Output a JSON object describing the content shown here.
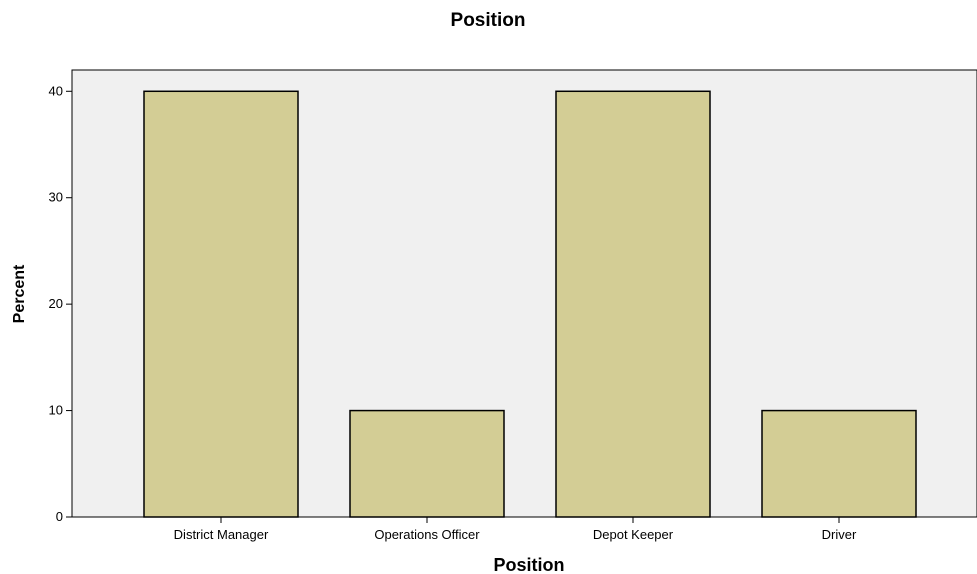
{
  "chart_data": {
    "type": "bar",
    "title": "Position",
    "xlabel": "Position",
    "ylabel": "Percent",
    "categories": [
      "District Manager",
      "Operations Officer",
      "Depot Keeper",
      "Driver"
    ],
    "values": [
      40,
      10,
      40,
      10
    ],
    "ylim": [
      0,
      42
    ],
    "yticks": [
      0,
      10,
      20,
      30,
      40
    ],
    "grid": false,
    "legend": "none",
    "colors": {
      "bar_fill": "#d3cd95",
      "bar_stroke": "#000000",
      "plot_background": "#f0f0f0"
    }
  }
}
